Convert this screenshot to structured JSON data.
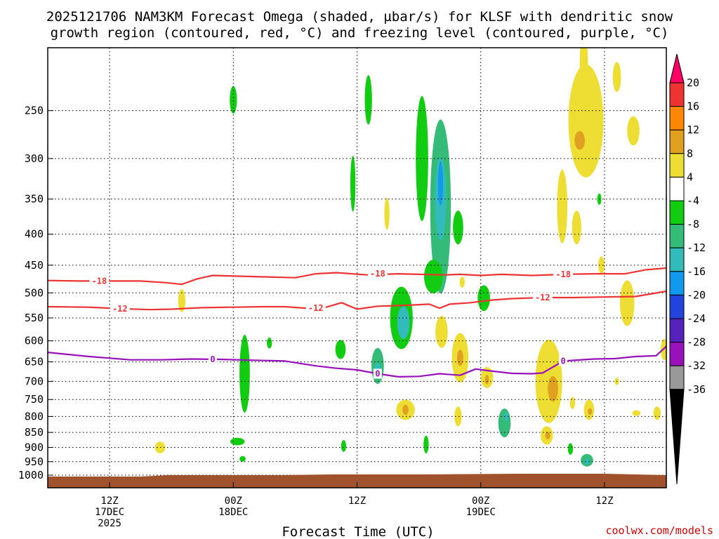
{
  "chart_data": {
    "type": "heatmap",
    "title_line1": "2025121706 NAM3KM Forecast Omega (shaded, µbar/s) for KLSF with dendritic snow",
    "title_line2": "growth region (contoured, red, °C) and freezing level (contoured, purple, °C)",
    "xlabel": "Forecast Time (UTC)",
    "credit": "coolwx.com/models",
    "x_range_hours": [
      0,
      60
    ],
    "y_range_hPa": [
      200,
      1000
    ],
    "y_ticks": [
      250,
      300,
      350,
      400,
      450,
      500,
      550,
      600,
      650,
      700,
      750,
      800,
      850,
      900,
      950,
      1000
    ],
    "x_ticks": [
      {
        "hour": 6,
        "line1": "12Z",
        "line2": "17DEC",
        "line3": "2025"
      },
      {
        "hour": 18,
        "line1": "00Z",
        "line2": "18DEC",
        "line3": ""
      },
      {
        "hour": 30,
        "line1": "12Z",
        "line2": "",
        "line3": ""
      },
      {
        "hour": 42,
        "line1": "00Z",
        "line2": "19DEC",
        "line3": ""
      },
      {
        "hour": 54,
        "line1": "12Z",
        "line2": "",
        "line3": ""
      }
    ],
    "colorbar": {
      "labels": [
        "20",
        "16",
        "12",
        "8",
        "4",
        "-4",
        "-8",
        "-12",
        "-16",
        "-20",
        "-24",
        "-28",
        "-32",
        "-36"
      ],
      "colors": [
        "#ff0066",
        "#ee3333",
        "#ff8800",
        "#e0a020",
        "#eedd33",
        "#ffffff",
        "#11cc11",
        "#33bb77",
        "#33bbbb",
        "#1199ee",
        "#2244dd",
        "#5522bb",
        "#9911bb",
        "#999999",
        "#000000"
      ]
    },
    "contours": [
      {
        "name": "dgz-18",
        "label": "-18",
        "color": "#ee3333",
        "points": [
          [
            0,
            477
          ],
          [
            3,
            478
          ],
          [
            5.5,
            478
          ],
          [
            9,
            478
          ],
          [
            11.5,
            481
          ],
          [
            13,
            484
          ],
          [
            14.5,
            474
          ],
          [
            16,
            468
          ],
          [
            20,
            470
          ],
          [
            24,
            472
          ],
          [
            26,
            465
          ],
          [
            28,
            463
          ],
          [
            31,
            467
          ],
          [
            34,
            465
          ],
          [
            36,
            466
          ],
          [
            38.5,
            467
          ],
          [
            40,
            466
          ],
          [
            42,
            468
          ],
          [
            44,
            466
          ],
          [
            47,
            468
          ],
          [
            50,
            466
          ],
          [
            53,
            465
          ],
          [
            56,
            465
          ],
          [
            58,
            458
          ],
          [
            60,
            455
          ]
        ]
      },
      {
        "name": "dgz-12",
        "label": "-12",
        "color": "#ee3333",
        "points": [
          [
            0,
            527
          ],
          [
            4,
            528
          ],
          [
            7,
            531
          ],
          [
            10,
            533
          ],
          [
            12,
            532
          ],
          [
            15,
            529
          ],
          [
            18,
            528
          ],
          [
            21,
            527
          ],
          [
            23,
            527
          ],
          [
            25,
            530
          ],
          [
            27,
            528
          ],
          [
            28.5,
            519
          ],
          [
            30,
            532
          ],
          [
            32,
            526
          ],
          [
            35,
            524
          ],
          [
            37,
            522
          ],
          [
            38,
            530
          ],
          [
            39,
            522
          ],
          [
            41,
            519
          ],
          [
            43,
            514
          ],
          [
            45,
            511
          ],
          [
            48,
            509
          ],
          [
            51,
            509
          ],
          [
            54,
            508
          ],
          [
            57,
            507
          ],
          [
            60,
            497
          ]
        ]
      },
      {
        "name": "freezing-level",
        "label": "0",
        "color": "#9911bb",
        "points": [
          [
            0,
            627
          ],
          [
            4,
            637
          ],
          [
            8,
            645
          ],
          [
            11,
            645
          ],
          [
            14,
            643
          ],
          [
            17,
            644
          ],
          [
            20,
            646
          ],
          [
            23,
            648
          ],
          [
            26,
            660
          ],
          [
            28,
            666
          ],
          [
            30,
            670
          ],
          [
            32,
            680
          ],
          [
            34,
            688
          ],
          [
            36,
            687
          ],
          [
            38,
            680
          ],
          [
            40,
            684
          ],
          [
            41.5,
            668
          ],
          [
            43,
            673
          ],
          [
            45,
            679
          ],
          [
            47,
            680
          ],
          [
            48,
            678
          ],
          [
            50,
            648
          ],
          [
            53,
            643
          ],
          [
            55,
            642
          ],
          [
            57,
            637
          ],
          [
            59,
            635
          ],
          [
            60,
            613
          ]
        ]
      }
    ],
    "contour_labels": [
      {
        "contour": "dgz-18",
        "text": "-18",
        "at": [
          [
            5,
            478
          ],
          [
            32,
            465
          ],
          [
            50,
            466
          ]
        ]
      },
      {
        "contour": "dgz-12",
        "text": "-12",
        "at": [
          [
            7,
            531
          ],
          [
            26,
            530
          ],
          [
            48,
            509
          ]
        ]
      },
      {
        "contour": "freezing-level",
        "text": "0",
        "at": [
          [
            16,
            644
          ],
          [
            32,
            680
          ],
          [
            50,
            648
          ]
        ]
      }
    ],
    "omega_cells": [
      {
        "h": 18,
        "p": 240,
        "dh": 0.35,
        "dp": 25,
        "v": -6
      },
      {
        "h": 36.3,
        "p": 300,
        "dh": 0.6,
        "dp": 140,
        "v": -7
      },
      {
        "h": 38.1,
        "p": 360,
        "dh": 1.0,
        "dp": 230,
        "v": -8
      },
      {
        "h": 38.1,
        "p": 350,
        "dh": 0.55,
        "dp": 110,
        "v": -14
      },
      {
        "h": 38.1,
        "p": 330,
        "dh": 0.25,
        "dp": 55,
        "v": -17
      },
      {
        "h": 31.1,
        "p": 240,
        "dh": 0.35,
        "dp": 45,
        "v": -6
      },
      {
        "h": 29.6,
        "p": 330,
        "dh": 0.25,
        "dp": 70,
        "v": -6
      },
      {
        "h": 39.8,
        "p": 390,
        "dh": 0.5,
        "dp": 50,
        "v": -7
      },
      {
        "h": 37.4,
        "p": 470,
        "dh": 0.9,
        "dp": 60,
        "v": -7
      },
      {
        "h": 34.3,
        "p": 550,
        "dh": 1.1,
        "dp": 130,
        "v": -7
      },
      {
        "h": 34.5,
        "p": 560,
        "dh": 0.6,
        "dp": 70,
        "v": -12
      },
      {
        "h": 32.0,
        "p": 660,
        "dh": 0.6,
        "dp": 90,
        "v": -8
      },
      {
        "h": 32.0,
        "p": 670,
        "dh": 0.3,
        "dp": 35,
        "v": -15
      },
      {
        "h": 42.3,
        "p": 510,
        "dh": 0.6,
        "dp": 50,
        "v": -7
      },
      {
        "h": 19.1,
        "p": 680,
        "dh": 0.5,
        "dp": 200,
        "v": -7
      },
      {
        "h": 18.4,
        "p": 880,
        "dh": 0.7,
        "dp": 25,
        "v": -6
      },
      {
        "h": 21.5,
        "p": 605,
        "dh": 0.25,
        "dp": 25,
        "v": -6
      },
      {
        "h": 28.4,
        "p": 620,
        "dh": 0.5,
        "dp": 45,
        "v": -6
      },
      {
        "h": 28.7,
        "p": 895,
        "dh": 0.25,
        "dp": 40,
        "v": -6
      },
      {
        "h": 36.7,
        "p": 890,
        "dh": 0.25,
        "dp": 60,
        "v": -6
      },
      {
        "h": 18.9,
        "p": 940,
        "dh": 0.3,
        "dp": 15,
        "v": -6
      },
      {
        "h": 44.3,
        "p": 820,
        "dh": 0.6,
        "dp": 90,
        "v": -8
      },
      {
        "h": 44.5,
        "p": 800,
        "dh": 0.2,
        "dp": 30,
        "v": -14
      },
      {
        "h": 50.7,
        "p": 905,
        "dh": 0.25,
        "dp": 40,
        "v": -6
      },
      {
        "h": 52.3,
        "p": 945,
        "dh": 0.6,
        "dp": 45,
        "v": -8
      },
      {
        "h": 52.3,
        "p": 950,
        "dh": 0.25,
        "dp": 15,
        "v": -14
      },
      {
        "h": 53.5,
        "p": 350,
        "dh": 0.15,
        "dp": 15,
        "v": -6
      },
      {
        "h": 52.2,
        "p": 260,
        "dh": 1.7,
        "dp": 110,
        "v": 5
      },
      {
        "h": 51.6,
        "p": 280,
        "dh": 0.5,
        "dp": 20,
        "v": 9
      },
      {
        "h": 52.0,
        "p": 210,
        "dh": 0.4,
        "dp": 50,
        "v": 5
      },
      {
        "h": 49.9,
        "p": 360,
        "dh": 0.5,
        "dp": 100,
        "v": 5
      },
      {
        "h": 51.3,
        "p": 390,
        "dh": 0.45,
        "dp": 50,
        "v": 5
      },
      {
        "h": 55.2,
        "p": 220,
        "dh": 0.4,
        "dp": 25,
        "v": 5
      },
      {
        "h": 56.8,
        "p": 270,
        "dh": 0.6,
        "dp": 30,
        "v": 5
      },
      {
        "h": 32.9,
        "p": 370,
        "dh": 0.25,
        "dp": 45,
        "v": 5
      },
      {
        "h": 13,
        "p": 515,
        "dh": 0.35,
        "dp": 45,
        "v": 5
      },
      {
        "h": 10.9,
        "p": 900,
        "dh": 0.5,
        "dp": 40,
        "v": 5
      },
      {
        "h": 38.2,
        "p": 580,
        "dh": 0.6,
        "dp": 70,
        "v": 6
      },
      {
        "h": 40.0,
        "p": 640,
        "dh": 0.8,
        "dp": 120,
        "v": 6
      },
      {
        "h": 40.0,
        "p": 640,
        "dh": 0.3,
        "dp": 40,
        "v": 11
      },
      {
        "h": 40.2,
        "p": 480,
        "dh": 0.25,
        "dp": 20,
        "v": 5
      },
      {
        "h": 34.7,
        "p": 780,
        "dh": 0.9,
        "dp": 60,
        "v": 6
      },
      {
        "h": 34.7,
        "p": 780,
        "dh": 0.3,
        "dp": 30,
        "v": 11
      },
      {
        "h": 39.8,
        "p": 800,
        "dh": 0.35,
        "dp": 60,
        "v": 5
      },
      {
        "h": 42.6,
        "p": 690,
        "dh": 0.6,
        "dp": 55,
        "v": 6
      },
      {
        "h": 42.6,
        "p": 695,
        "dh": 0.2,
        "dp": 25,
        "v": 9
      },
      {
        "h": 48.6,
        "p": 700,
        "dh": 1.3,
        "dp": 220,
        "v": 5
      },
      {
        "h": 49.0,
        "p": 720,
        "dh": 0.5,
        "dp": 70,
        "v": 8
      },
      {
        "h": 48.4,
        "p": 860,
        "dh": 0.6,
        "dp": 60,
        "v": 6
      },
      {
        "h": 48.5,
        "p": 860,
        "dh": 0.25,
        "dp": 25,
        "v": 11
      },
      {
        "h": 50.9,
        "p": 760,
        "dh": 0.25,
        "dp": 35,
        "v": 6
      },
      {
        "h": 52.5,
        "p": 780,
        "dh": 0.5,
        "dp": 60,
        "v": 5
      },
      {
        "h": 52.6,
        "p": 785,
        "dh": 0.2,
        "dp": 20,
        "v": 9
      },
      {
        "h": 56.2,
        "p": 520,
        "dh": 0.7,
        "dp": 90,
        "v": 5
      },
      {
        "h": 53.7,
        "p": 450,
        "dh": 0.3,
        "dp": 30,
        "v": 5
      },
      {
        "h": 59.8,
        "p": 620,
        "dh": 0.35,
        "dp": 50,
        "v": 5
      },
      {
        "h": 59.1,
        "p": 790,
        "dh": 0.35,
        "dp": 40,
        "v": 5
      },
      {
        "h": 57.1,
        "p": 790,
        "dh": 0.4,
        "dp": 15,
        "v": 5
      },
      {
        "h": 55.2,
        "p": 700,
        "dh": 0.1,
        "dp": 20,
        "v": 5
      }
    ]
  }
}
